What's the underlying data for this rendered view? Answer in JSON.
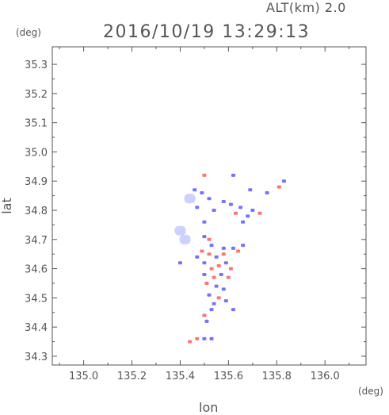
{
  "header": {
    "altitude": "ALT(km) 2.0",
    "timestamp": "2016/10/19 13:29:13",
    "y_unit": "(deg)",
    "x_unit": "(deg)"
  },
  "chart_data": {
    "type": "scatter",
    "title": "2016/10/19 13:29:13",
    "subtitle": "ALT(km) 2.0",
    "xlabel": "lon",
    "ylabel": "lat",
    "xlim": [
      134.87,
      136.17
    ],
    "ylim": [
      34.27,
      35.36
    ],
    "xticks": [
      "135.0",
      "135.2",
      "135.4",
      "135.6",
      "135.8",
      "136.0"
    ],
    "yticks": [
      "34.3",
      "34.4",
      "34.5",
      "34.6",
      "34.7",
      "34.8",
      "34.9",
      "35.0",
      "35.1",
      "35.2",
      "35.3"
    ],
    "grid": false,
    "colors": {
      "positive": "#ff5a5a",
      "negative": "#5a5aff",
      "light": "#c8ccff"
    },
    "series": [
      {
        "values": [
          {
            "x": 135.5,
            "y": 34.92,
            "c": "positive"
          },
          {
            "x": 135.62,
            "y": 34.92,
            "c": "negative"
          },
          {
            "x": 135.83,
            "y": 34.9,
            "c": "negative"
          },
          {
            "x": 135.81,
            "y": 34.88,
            "c": "positive"
          },
          {
            "x": 135.46,
            "y": 34.87,
            "c": "negative"
          },
          {
            "x": 135.49,
            "y": 34.86,
            "c": "negative"
          },
          {
            "x": 135.69,
            "y": 34.87,
            "c": "negative"
          },
          {
            "x": 135.76,
            "y": 34.86,
            "c": "negative"
          },
          {
            "x": 135.52,
            "y": 34.84,
            "c": "negative"
          },
          {
            "x": 135.44,
            "y": 34.84,
            "c": "light"
          },
          {
            "x": 135.58,
            "y": 34.83,
            "c": "negative"
          },
          {
            "x": 135.61,
            "y": 34.82,
            "c": "negative"
          },
          {
            "x": 135.65,
            "y": 34.81,
            "c": "negative"
          },
          {
            "x": 135.47,
            "y": 34.81,
            "c": "negative"
          },
          {
            "x": 135.54,
            "y": 34.8,
            "c": "negative"
          },
          {
            "x": 135.63,
            "y": 34.79,
            "c": "positive"
          },
          {
            "x": 135.7,
            "y": 34.8,
            "c": "negative"
          },
          {
            "x": 135.73,
            "y": 34.79,
            "c": "positive"
          },
          {
            "x": 135.68,
            "y": 34.78,
            "c": "negative"
          },
          {
            "x": 135.66,
            "y": 34.76,
            "c": "negative"
          },
          {
            "x": 135.5,
            "y": 34.76,
            "c": "negative"
          },
          {
            "x": 135.4,
            "y": 34.73,
            "c": "light"
          },
          {
            "x": 135.42,
            "y": 34.7,
            "c": "light"
          },
          {
            "x": 135.5,
            "y": 34.71,
            "c": "negative"
          },
          {
            "x": 135.52,
            "y": 34.7,
            "c": "positive"
          },
          {
            "x": 135.53,
            "y": 34.68,
            "c": "negative"
          },
          {
            "x": 135.58,
            "y": 34.67,
            "c": "negative"
          },
          {
            "x": 135.62,
            "y": 34.67,
            "c": "negative"
          },
          {
            "x": 135.66,
            "y": 34.68,
            "c": "negative"
          },
          {
            "x": 135.64,
            "y": 34.66,
            "c": "positive"
          },
          {
            "x": 135.49,
            "y": 34.66,
            "c": "positive"
          },
          {
            "x": 135.52,
            "y": 34.65,
            "c": "positive"
          },
          {
            "x": 135.55,
            "y": 34.64,
            "c": "negative"
          },
          {
            "x": 135.58,
            "y": 34.65,
            "c": "positive"
          },
          {
            "x": 135.47,
            "y": 34.64,
            "c": "negative"
          },
          {
            "x": 135.5,
            "y": 34.62,
            "c": "negative"
          },
          {
            "x": 135.53,
            "y": 34.6,
            "c": "positive"
          },
          {
            "x": 135.56,
            "y": 34.61,
            "c": "positive"
          },
          {
            "x": 135.59,
            "y": 34.62,
            "c": "negative"
          },
          {
            "x": 135.61,
            "y": 34.6,
            "c": "positive"
          },
          {
            "x": 135.5,
            "y": 34.58,
            "c": "negative"
          },
          {
            "x": 135.54,
            "y": 34.57,
            "c": "positive"
          },
          {
            "x": 135.57,
            "y": 34.58,
            "c": "negative"
          },
          {
            "x": 135.6,
            "y": 34.57,
            "c": "positive"
          },
          {
            "x": 135.51,
            "y": 34.55,
            "c": "positive"
          },
          {
            "x": 135.55,
            "y": 34.54,
            "c": "negative"
          },
          {
            "x": 135.58,
            "y": 34.53,
            "c": "negative"
          },
          {
            "x": 135.52,
            "y": 34.51,
            "c": "negative"
          },
          {
            "x": 135.56,
            "y": 34.5,
            "c": "positive"
          },
          {
            "x": 135.54,
            "y": 34.48,
            "c": "negative"
          },
          {
            "x": 135.59,
            "y": 34.49,
            "c": "negative"
          },
          {
            "x": 135.53,
            "y": 34.46,
            "c": "negative"
          },
          {
            "x": 135.5,
            "y": 34.44,
            "c": "positive"
          },
          {
            "x": 135.51,
            "y": 34.42,
            "c": "negative"
          },
          {
            "x": 135.47,
            "y": 34.36,
            "c": "positive"
          },
          {
            "x": 135.5,
            "y": 34.36,
            "c": "negative"
          },
          {
            "x": 135.53,
            "y": 34.36,
            "c": "negative"
          },
          {
            "x": 135.44,
            "y": 34.35,
            "c": "positive"
          },
          {
            "x": 135.4,
            "y": 34.62,
            "c": "negative"
          },
          {
            "x": 135.62,
            "y": 34.46,
            "c": "negative"
          }
        ]
      }
    ]
  }
}
